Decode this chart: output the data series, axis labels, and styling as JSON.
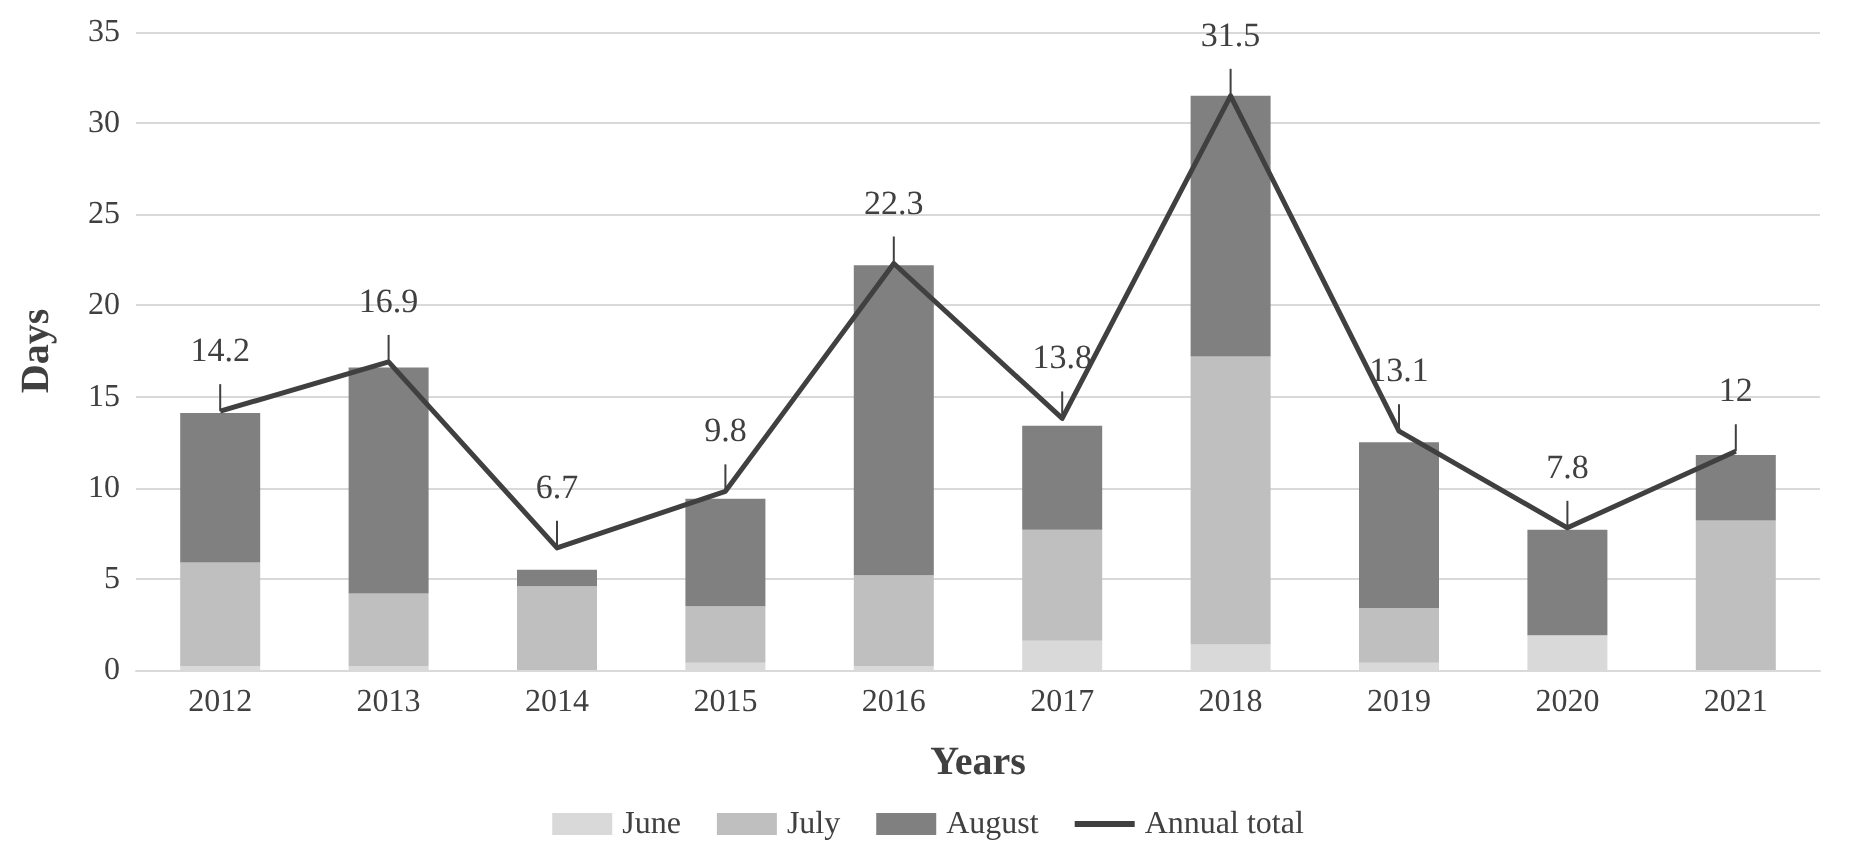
{
  "chart_data": {
    "type": "bar",
    "stacked": true,
    "xlabel": "Years",
    "ylabel": "Days",
    "categories": [
      "2012",
      "2013",
      "2014",
      "2015",
      "2016",
      "2017",
      "2018",
      "2019",
      "2020",
      "2021"
    ],
    "series": [
      {
        "name": "June",
        "color": "#d9d9d9",
        "values": [
          0.2,
          0.2,
          0,
          0.4,
          0.2,
          1.6,
          1.4,
          0.4,
          1.9,
          0
        ]
      },
      {
        "name": "July",
        "color": "#bfbfbf",
        "values": [
          5.7,
          4.0,
          4.6,
          3.1,
          5.0,
          6.1,
          15.8,
          3.0,
          0,
          8.2
        ]
      },
      {
        "name": "August",
        "color": "#808080",
        "values": [
          8.2,
          12.4,
          0.9,
          5.9,
          17.0,
          5.7,
          14.3,
          9.1,
          5.8,
          3.6
        ]
      },
      {
        "name": "Annual total",
        "type": "line",
        "color": "#404040",
        "data_labels": true,
        "values": [
          14.2,
          16.9,
          6.7,
          9.8,
          22.3,
          13.8,
          31.5,
          13.1,
          7.8,
          12
        ]
      }
    ],
    "ylim": [
      0,
      35
    ],
    "yticks": [
      0,
      5,
      10,
      15,
      20,
      25,
      30,
      35
    ],
    "grid": "y",
    "legend": "bottom",
    "marker": "none"
  }
}
